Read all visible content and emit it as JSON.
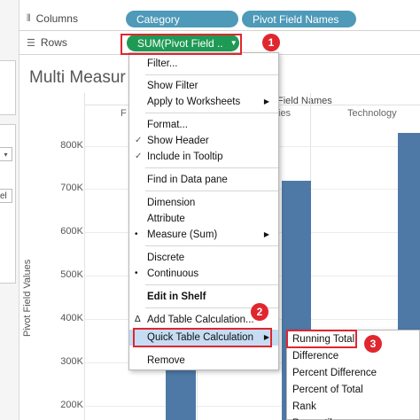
{
  "shelves": {
    "columns": {
      "label": "Columns",
      "icon": "columns-icon",
      "pills": [
        "Category",
        "Pivot Field Names"
      ]
    },
    "rows": {
      "label": "Rows",
      "icon": "rows-icon",
      "pill": "SUM(Pivot Field ..",
      "pill_icon": "dropdown-caret-icon"
    }
  },
  "left_panel": {
    "dropdown_icon": "chevron-down-icon",
    "partial_text": "el"
  },
  "sheet": {
    "title": "Multi Measur",
    "header_field_label": "Field Names",
    "column_headers": [
      "F",
      "ies",
      "Technology"
    ],
    "y_axis_label": "Pivot Field Values",
    "y_ticks": [
      "800K",
      "700K",
      "600K",
      "500K",
      "400K",
      "300K",
      "200K"
    ]
  },
  "chart_data": {
    "type": "bar",
    "title": "Multi Measur",
    "xlabel": "Pivot Field Names",
    "ylabel": "Pivot Field Values",
    "categories": [
      "Furniture",
      "Office Supplies",
      "Technology"
    ],
    "values": [
      null,
      720000,
      830000
    ],
    "ylim": [
      180000,
      880000
    ],
    "note": "bars partially hidden behind context menu"
  },
  "context_menu": {
    "items": [
      {
        "label": "Filter...",
        "type": "item"
      },
      {
        "type": "sep"
      },
      {
        "label": "Show Filter",
        "type": "item"
      },
      {
        "label": "Apply to Worksheets",
        "type": "item",
        "submenu": true
      },
      {
        "type": "sep"
      },
      {
        "label": "Format...",
        "type": "item"
      },
      {
        "label": "Show Header",
        "type": "item",
        "checked": true
      },
      {
        "label": "Include in Tooltip",
        "type": "item",
        "checked": true
      },
      {
        "type": "sep"
      },
      {
        "label": "Find in Data pane",
        "type": "item"
      },
      {
        "type": "sep"
      },
      {
        "label": "Dimension",
        "type": "item"
      },
      {
        "label": "Attribute",
        "type": "item"
      },
      {
        "label": "Measure (Sum)",
        "type": "item",
        "bullet": true,
        "submenu": true
      },
      {
        "type": "sep"
      },
      {
        "label": "Discrete",
        "type": "item"
      },
      {
        "label": "Continuous",
        "type": "item",
        "bullet": true
      },
      {
        "type": "sep"
      },
      {
        "label": "Edit in Shelf",
        "type": "item",
        "bold": true
      },
      {
        "type": "sep"
      },
      {
        "label": "Add Table Calculation...",
        "type": "item",
        "icon": "delta-icon"
      },
      {
        "label": "Quick Table Calculation",
        "type": "item",
        "submenu": true,
        "selected": true
      },
      {
        "label": "Remove",
        "type": "item"
      }
    ]
  },
  "quick_calc_submenu": {
    "items": [
      "Running Total",
      "Difference",
      "Percent Difference",
      "Percent of Total",
      "Rank",
      "Percentile"
    ]
  },
  "callouts": [
    "1",
    "2",
    "3"
  ],
  "colors": {
    "dimension_pill": "#4e9ab8",
    "measure_pill": "#1f9a55",
    "bar": "#4e79a7",
    "highlight": "#e0262f",
    "menu_selected": "#c5dcf3"
  }
}
